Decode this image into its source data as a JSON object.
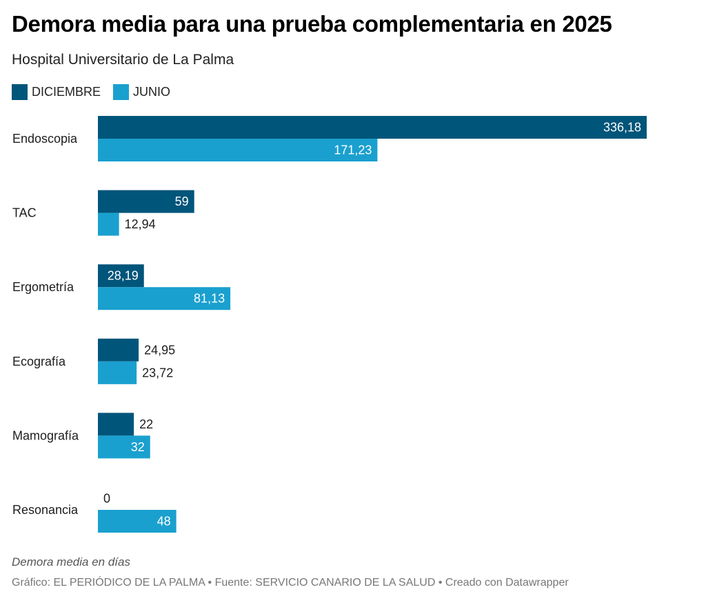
{
  "chart_data": {
    "type": "bar",
    "orientation": "horizontal",
    "title": "Demora media para una prueba complementaria en 2025",
    "subtitle": "Hospital Universitario de La Palma",
    "categories": [
      "Endoscopia",
      "TAC",
      "Ergometría",
      "Ecografía",
      "Mamografía",
      "Resonancia"
    ],
    "series": [
      {
        "name": "DICIEMBRE",
        "color": "#00557a",
        "values": [
          336.18,
          59,
          28.19,
          24.95,
          22,
          0
        ],
        "labels": [
          "336,18",
          "59",
          "28,19",
          "24,95",
          "22",
          "0"
        ]
      },
      {
        "name": "JUNIO",
        "color": "#1aa0cf",
        "values": [
          171.23,
          12.94,
          81.13,
          23.72,
          32,
          48
        ],
        "labels": [
          "171,23",
          "12,94",
          "81,13",
          "23,72",
          "32",
          "48"
        ]
      }
    ],
    "xlim": [
      0,
      336.18
    ],
    "grid": false,
    "legend_position": "top-left",
    "notes": "Demora media en días",
    "xlabel": "",
    "ylabel": ""
  },
  "footer": "Gráfico: EL PERIÓDICO DE LA PALMA • Fuente: SERVICIO CANARIO DE LA SALUD • Creado con Datawrapper"
}
